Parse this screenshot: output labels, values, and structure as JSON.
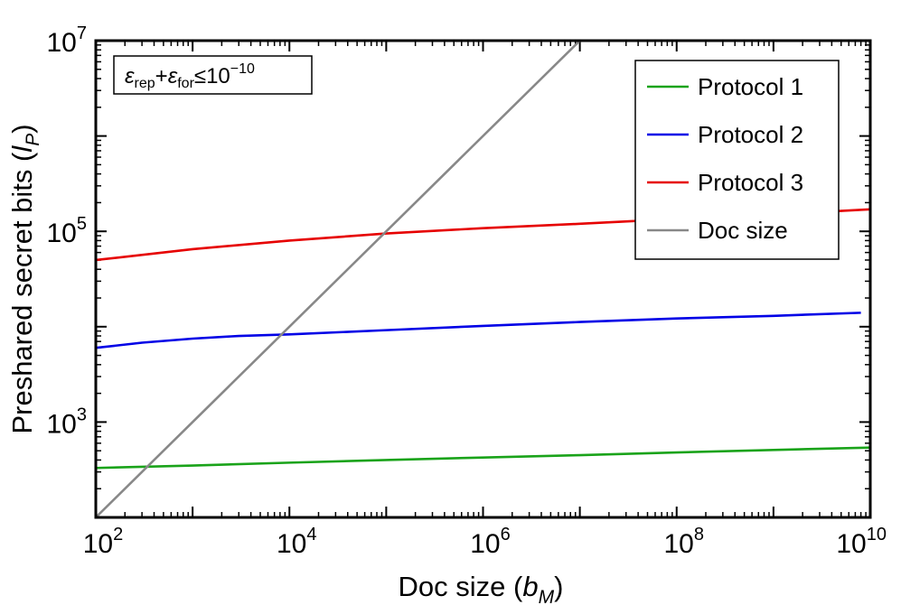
{
  "chart_data": {
    "type": "line",
    "title": "",
    "xlabel": {
      "main": "Doc size (",
      "sym": "b",
      "sub": "M",
      "close": ")"
    },
    "ylabel": {
      "main": "Preshared secret bits (",
      "sym": "l",
      "sub": "P",
      "close": ")"
    },
    "xscale": "log",
    "yscale": "log",
    "xlim": [
      100,
      10000000000
    ],
    "ylim": [
      100,
      10000000
    ],
    "x_ticks": [
      {
        "value": 100,
        "base": "10",
        "exp": "2"
      },
      {
        "value": 10000,
        "base": "10",
        "exp": "4"
      },
      {
        "value": 1000000,
        "base": "10",
        "exp": "6"
      },
      {
        "value": 100000000,
        "base": "10",
        "exp": "8"
      },
      {
        "value": 10000000000,
        "base": "10",
        "exp": "10"
      }
    ],
    "y_ticks": [
      {
        "value": 1000,
        "base": "10",
        "exp": "3"
      },
      {
        "value": 100000,
        "base": "10",
        "exp": "5"
      },
      {
        "value": 10000000,
        "base": "10",
        "exp": "7"
      }
    ],
    "grid": false,
    "legend_position": "top-right",
    "annotation": {
      "eps1": "ε",
      "sub1": "rep",
      "plus": "+",
      "eps2": "ε",
      "sub2": "for",
      "rel": "≤10",
      "exp": "−10"
    },
    "series": [
      {
        "name": "Protocol 1",
        "color": "#1aa31a",
        "x": [
          100,
          1000,
          10000,
          100000,
          1000000,
          10000000,
          100000000,
          1000000000,
          10000000000
        ],
        "y": [
          330,
          350,
          375,
          400,
          425,
          450,
          480,
          510,
          540
        ]
      },
      {
        "name": "Protocol 2",
        "color": "#0000e6",
        "x": [
          100,
          300,
          1000,
          3000,
          10000,
          100000,
          1000000,
          10000000,
          100000000,
          1000000000,
          8000000000
        ],
        "y": [
          6000,
          6800,
          7500,
          8000,
          8300,
          9200,
          10200,
          11200,
          12200,
          13000,
          14000
        ]
      },
      {
        "name": "Protocol 3",
        "color": "#e60000",
        "x": [
          100,
          1000,
          10000,
          100000,
          1000000,
          10000000,
          100000000,
          1000000000,
          10000000000
        ],
        "y": [
          50000,
          65000,
          80000,
          95000,
          108000,
          120000,
          135000,
          150000,
          170000
        ]
      },
      {
        "name": "Doc size",
        "color": "#888888",
        "x": [
          100,
          10000000
        ],
        "y": [
          100,
          10000000
        ]
      }
    ]
  }
}
